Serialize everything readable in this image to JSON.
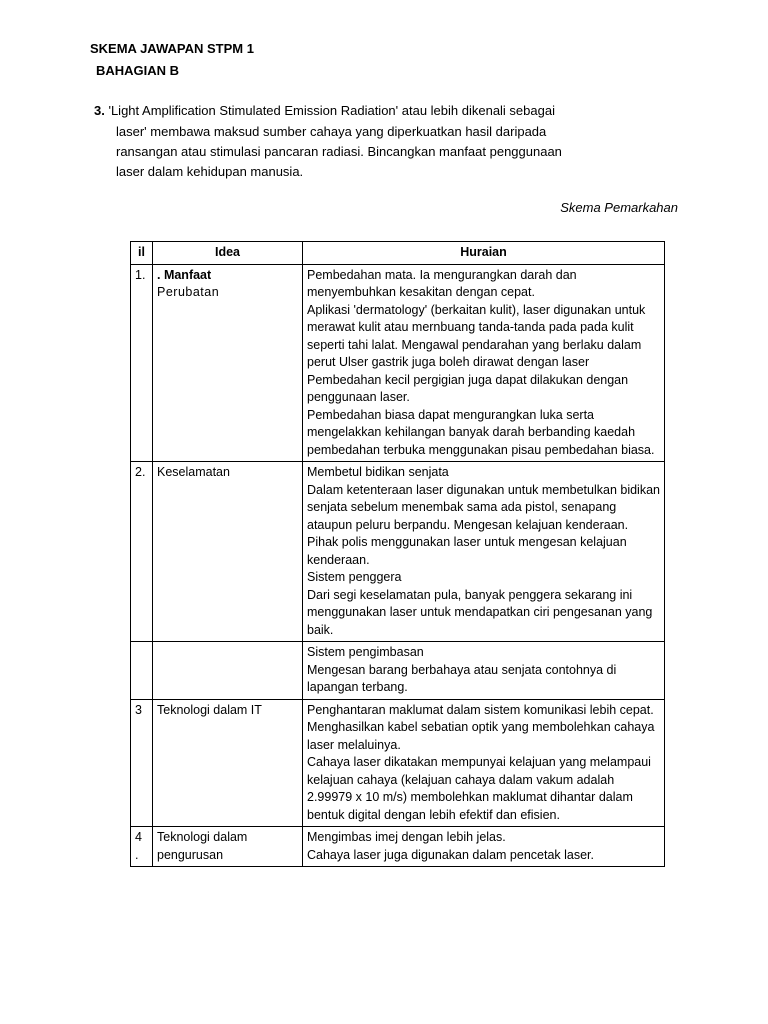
{
  "header": {
    "title": "SKEMA JAWAPAN STPM 1",
    "subtitle": "BAHAGIAN B"
  },
  "question": {
    "number": "3.",
    "line1": "'Light Amplification Stimulated Emission Radiation' atau lebih dikenali sebagai",
    "line2": "laser' membawa maksud sumber cahaya yang diperkuatkan hasil daripada",
    "line3": "ransangan atau stimulasi pancaran radiasi. Bincangkan manfaat penggunaan",
    "line4": "laser dalam kehidupan manusia."
  },
  "skema_label": "Skema Pemarkahan",
  "table": {
    "headers": {
      "c1": "il",
      "c2": "Idea",
      "c3": "Huraian"
    },
    "rows": [
      {
        "num": "1.",
        "idea_bold": ". Manfaat",
        "idea_sub": "Perubatan",
        "huraian": "Pembedahan mata. Ia mengurangkan darah dan menyembuhkan kesakitan dengan cepat.\nAplikasi 'dermatology' (berkaitan kulit), laser digunakan untuk merawat kulit atau mernbuang tanda-tanda pada pada kulit seperti tahi lalat. Mengawal  pendarahan  yang  berlaku dalam    perut Ulser gastrik juga boleh dirawat dengan laser Pembedahan kecil pergigian juga dapat dilakukan dengan penggunaan laser.\nPembedahan biasa  dapat mengurangkan luka serta mengelakkan kehilangan banyak darah berbanding kaedah       pembedahan terbuka menggunakan pisau     pembedahan biasa."
      },
      {
        "num": "2.",
        "idea": "Keselamatan",
        "huraian": "Membetul bidikan senjata\nDalam  ketenteraan  laser  digunakan untuk membetulkan   bidikan   senjata sebelum menembak sama ada pistol, senapang ataupun peluru berpandu. Mengesan kelajuan kenderaan.\nPihak polis menggunakan laser untuk mengesan kelajuan kenderaan.\nSistem penggera\nDari segi keselamatan  pula,  banyak penggera sekarang ini menggunakan laser     untuk mendapatkan     ciri pengesanan yang baik."
      },
      {
        "num": "",
        "idea": "",
        "huraian": " Sistem pengimbasan\nMengesan  barang    berbahaya  atau senjata contohnya di lapangan terbang."
      },
      {
        "num": "3",
        "idea": "Teknologi dalam IT",
        "huraian": "Penghantaran maklumat dalam sistem komunikasi lebih cepat.\nMenghasilkan kabel sebatian optik yang membolehkan cahaya laser melaluinya.\nCahaya  laser  dikatakan  mempunyai kelajuan yang  melampaui  kelajuan cahaya (kelajuan cahaya dalam vakum adalah 2.99979 x 10 m/s) membolehkan maklumat dihantar dalam bentuk digital dengan lebih efektif dan efisien."
      },
      {
        "num": "4 .",
        "idea": "Teknologi dalam pengurusan",
        "huraian": "Mengimbas imej dengan lebih jelas.\nCahaya laser juga digunakan    dalam pencetak laser."
      }
    ]
  }
}
